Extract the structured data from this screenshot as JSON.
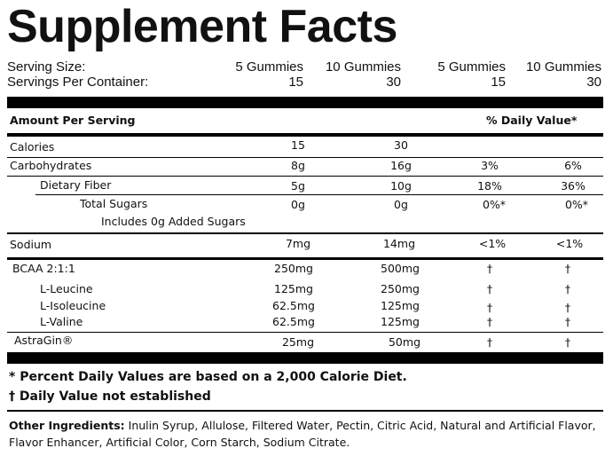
{
  "title": "Supplement Facts",
  "serving": {
    "size_label": "Serving Size:",
    "per_container_label": "Servings Per Container:",
    "columns": [
      {
        "size": "5 Gummies",
        "servings": "15"
      },
      {
        "size": "10 Gummies",
        "servings": "30"
      },
      {
        "size": "5 Gummies",
        "servings": "15"
      },
      {
        "size": "10 Gummies",
        "servings": "30"
      }
    ]
  },
  "amount_per_serving": "Amount Per Serving",
  "daily_value_header": "% Daily Value*",
  "rows": {
    "calories": {
      "name": "Calories",
      "a": "15",
      "b": "30",
      "c": "",
      "d": ""
    },
    "carbohydrates": {
      "name": "Carbohydrates",
      "a": "8g",
      "b": "16g",
      "c": "3%",
      "d": "6%"
    },
    "dietary_fiber": {
      "name": "Dietary Fiber",
      "a": "5g",
      "b": "10g",
      "c": "18%",
      "d": "36%"
    },
    "total_sugars": {
      "name": "Total Sugars",
      "a": "0g",
      "b": "0g",
      "c": "0%*",
      "d": "0%*"
    },
    "added_sugars": {
      "name": "Includes 0g Added Sugars"
    },
    "sodium": {
      "name": "Sodium",
      "a": "7mg",
      "b": "14mg",
      "c": "<1%",
      "d": "<1%"
    },
    "bcaa": {
      "name": "BCAA 2:1:1",
      "a": "250mg",
      "b": "500mg",
      "c": "†",
      "d": "†"
    },
    "leucine": {
      "name": "L-Leucine",
      "a": "125mg",
      "b": "250mg",
      "c": "†",
      "d": "†"
    },
    "isoleucine": {
      "name": "L-Isoleucine",
      "a": "62.5mg",
      "b": "125mg",
      "c": "†",
      "d": "†"
    },
    "valine": {
      "name": "L-Valine",
      "a": "62.5mg",
      "b": "125mg",
      "c": "†",
      "d": "†"
    },
    "astragin": {
      "name": "AstraGin®",
      "a": "25mg",
      "b": "50mg",
      "c": "†",
      "d": "†"
    }
  },
  "footnotes": {
    "percent_dv": "* Percent Daily Values are based on a 2,000 Calorie Diet.",
    "dagger_symbol": "†",
    "dagger_text": "Daily Value not established"
  },
  "other_ingredients": {
    "label": "Other Ingredients:",
    "text": " Inulin Syrup, Allulose, Filtered Water, Pectin, Citric Acid, Natural and Artificial Flavor, Flavor Enhancer, Artificial Color, Corn Starch, Sodium Citrate."
  }
}
